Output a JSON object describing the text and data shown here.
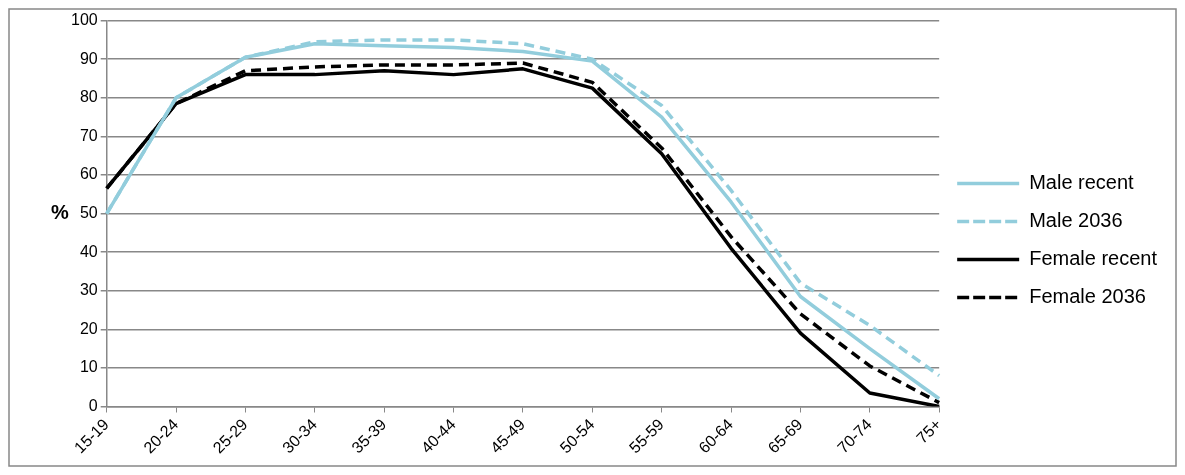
{
  "chart_data": {
    "type": "line",
    "ylabel": "%",
    "categories": [
      "15-19",
      "20-24",
      "25-29",
      "30-34",
      "35-39",
      "40-44",
      "45-49",
      "50-54",
      "55-59",
      "60-64",
      "65-69",
      "70-74",
      "75+"
    ],
    "series": [
      {
        "name": "Male recent",
        "color": "#92cddc",
        "line_style": "solid",
        "values": [
          50,
          80,
          90.5,
          94,
          93.5,
          93,
          92,
          89.5,
          75,
          53,
          28.5,
          15,
          2
        ]
      },
      {
        "name": "Male 2036",
        "color": "#92cddc",
        "line_style": "dashed",
        "values": [
          50,
          80,
          90.5,
          94.5,
          95,
          95,
          94,
          90,
          78,
          56,
          32,
          21,
          8
        ]
      },
      {
        "name": "Female recent",
        "color": "#000000",
        "line_style": "solid",
        "values": [
          56.5,
          78.5,
          86,
          86,
          87,
          86,
          87.5,
          82.5,
          65.5,
          41,
          19,
          3.5,
          0
        ]
      },
      {
        "name": "Female 2036",
        "color": "#000000",
        "line_style": "dashed",
        "values": [
          56.5,
          78.5,
          87,
          88,
          88.5,
          88.5,
          89,
          84,
          67,
          44,
          24,
          10.5,
          1
        ]
      }
    ],
    "ylim": [
      0,
      100
    ],
    "yticks": [
      0,
      10,
      20,
      30,
      40,
      50,
      60,
      70,
      80,
      90,
      100
    ],
    "grid": "y",
    "legend": "right",
    "marker": "none"
  }
}
